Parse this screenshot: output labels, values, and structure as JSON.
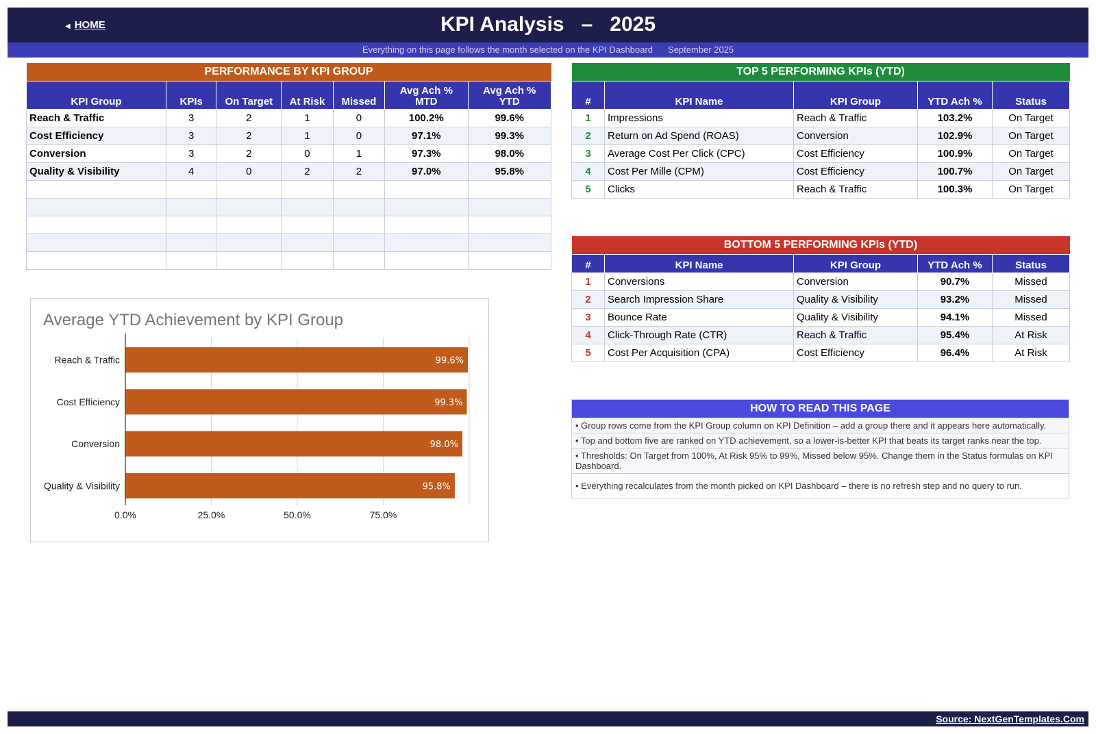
{
  "header": {
    "home_label": "HOME",
    "title": "KPI Analysis   –   2025",
    "subtitle": "Everything on this page follows the month selected on the KPI Dashboard",
    "month": "September 2025"
  },
  "colors": {
    "navy": "#1e1e4a",
    "header_blue": "#3535ad",
    "orange": "#c05a1a",
    "green": "#1e8c3a",
    "red": "#c8352b",
    "violet": "#4b48de"
  },
  "performance": {
    "title": "PERFORMANCE BY KPI GROUP",
    "columns": [
      "KPI Group",
      "KPIs",
      "On Target",
      "At Risk",
      "Missed",
      "Avg Ach %\nMTD",
      "Avg Ach %\nYTD"
    ],
    "rows": [
      {
        "group": "Reach & Traffic",
        "kpis": "3",
        "on_target": "2",
        "at_risk": "1",
        "missed": "0",
        "mtd": "100.2%",
        "ytd": "99.6%"
      },
      {
        "group": "Cost Efficiency",
        "kpis": "3",
        "on_target": "2",
        "at_risk": "1",
        "missed": "0",
        "mtd": "97.1%",
        "ytd": "99.3%"
      },
      {
        "group": "Conversion",
        "kpis": "3",
        "on_target": "2",
        "at_risk": "0",
        "missed": "1",
        "mtd": "97.3%",
        "ytd": "98.0%"
      },
      {
        "group": "Quality & Visibility",
        "kpis": "4",
        "on_target": "0",
        "at_risk": "2",
        "missed": "2",
        "mtd": "97.0%",
        "ytd": "95.8%"
      }
    ],
    "empty_rows": 5
  },
  "top5": {
    "title": "TOP 5 PERFORMING KPIs  (YTD)",
    "columns": [
      "#",
      "KPI Name",
      "KPI Group",
      "YTD Ach %",
      "Status"
    ],
    "rows": [
      {
        "rank": "1",
        "name": "Impressions",
        "group": "Reach & Traffic",
        "ytd": "103.2%",
        "status": "On Target"
      },
      {
        "rank": "2",
        "name": "Return on Ad Spend (ROAS)",
        "group": "Conversion",
        "ytd": "102.9%",
        "status": "On Target"
      },
      {
        "rank": "3",
        "name": "Average Cost Per Click (CPC)",
        "group": "Cost Efficiency",
        "ytd": "100.9%",
        "status": "On Target"
      },
      {
        "rank": "4",
        "name": "Cost Per Mille (CPM)",
        "group": "Cost Efficiency",
        "ytd": "100.7%",
        "status": "On Target"
      },
      {
        "rank": "5",
        "name": "Clicks",
        "group": "Reach & Traffic",
        "ytd": "100.3%",
        "status": "On Target"
      }
    ]
  },
  "bottom5": {
    "title": "BOTTOM 5 PERFORMING KPIs  (YTD)",
    "columns": [
      "#",
      "KPI Name",
      "KPI Group",
      "YTD Ach %",
      "Status"
    ],
    "rows": [
      {
        "rank": "1",
        "name": "Conversions",
        "group": "Conversion",
        "ytd": "90.7%",
        "status": "Missed"
      },
      {
        "rank": "2",
        "name": "Search Impression Share",
        "group": "Quality & Visibility",
        "ytd": "93.2%",
        "status": "Missed"
      },
      {
        "rank": "3",
        "name": "Bounce Rate",
        "group": "Quality & Visibility",
        "ytd": "94.1%",
        "status": "Missed"
      },
      {
        "rank": "4",
        "name": "Click-Through Rate (CTR)",
        "group": "Reach & Traffic",
        "ytd": "95.4%",
        "status": "At Risk"
      },
      {
        "rank": "5",
        "name": "Cost Per Acquisition (CPA)",
        "group": "Cost Efficiency",
        "ytd": "96.4%",
        "status": "At Risk"
      }
    ]
  },
  "howto": {
    "title": "HOW TO READ THIS PAGE",
    "tips": [
      "•  Group rows come from the KPI Group column on KPI Definition – add a group there and it appears here automatically.",
      "•  Top and bottom five are ranked on YTD achievement, so a lower-is-better KPI that beats its target ranks near the top.",
      "•  Thresholds: On Target from 100%, At Risk 95% to 99%, Missed below 95%. Change them in the Status formulas on KPI Dashboard.",
      "•  Everything recalculates from the month picked on KPI Dashboard – there is no refresh step and no query to run."
    ]
  },
  "chart_data": {
    "type": "bar",
    "orientation": "horizontal",
    "title": "Average YTD Achievement by KPI Group",
    "categories": [
      "Reach & Traffic",
      "Cost Efficiency",
      "Conversion",
      "Quality & Visibility"
    ],
    "values": [
      99.6,
      99.3,
      98.0,
      95.8
    ],
    "value_labels": [
      "99.6%",
      "99.3%",
      "98.0%",
      "95.8%"
    ],
    "xlim": [
      0,
      100
    ],
    "xticks": [
      0,
      25,
      50,
      75
    ],
    "xtick_labels": [
      "0.0%",
      "25.0%",
      "50.0%",
      "75.0%"
    ],
    "grid": true,
    "bar_color": "#c05a1a"
  },
  "footer": {
    "source": "Source: NextGenTemplates.Com"
  }
}
